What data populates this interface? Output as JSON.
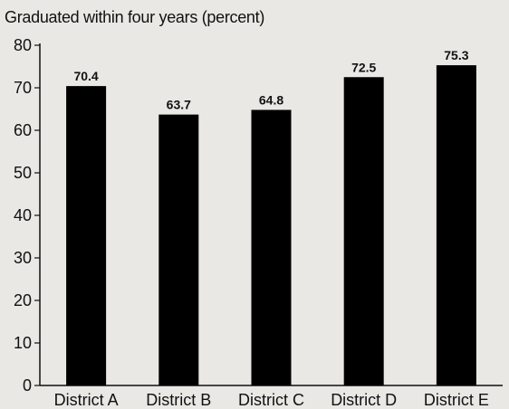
{
  "chart_data": {
    "type": "bar",
    "title": "Graduated within four years (percent)",
    "xlabel": "",
    "ylabel": "",
    "categories": [
      "District A",
      "District B",
      "District C",
      "District D",
      "District E"
    ],
    "values": [
      70.4,
      63.7,
      64.8,
      72.5,
      75.3
    ],
    "data_labels": [
      "70.4",
      "63.7",
      "64.8",
      "72.5",
      "75.3"
    ],
    "ylim": [
      0,
      80
    ],
    "yticks": [
      0,
      10,
      20,
      30,
      40,
      50,
      60,
      70,
      80
    ],
    "grid": false,
    "legend": "none",
    "bar_color": "#000000"
  }
}
